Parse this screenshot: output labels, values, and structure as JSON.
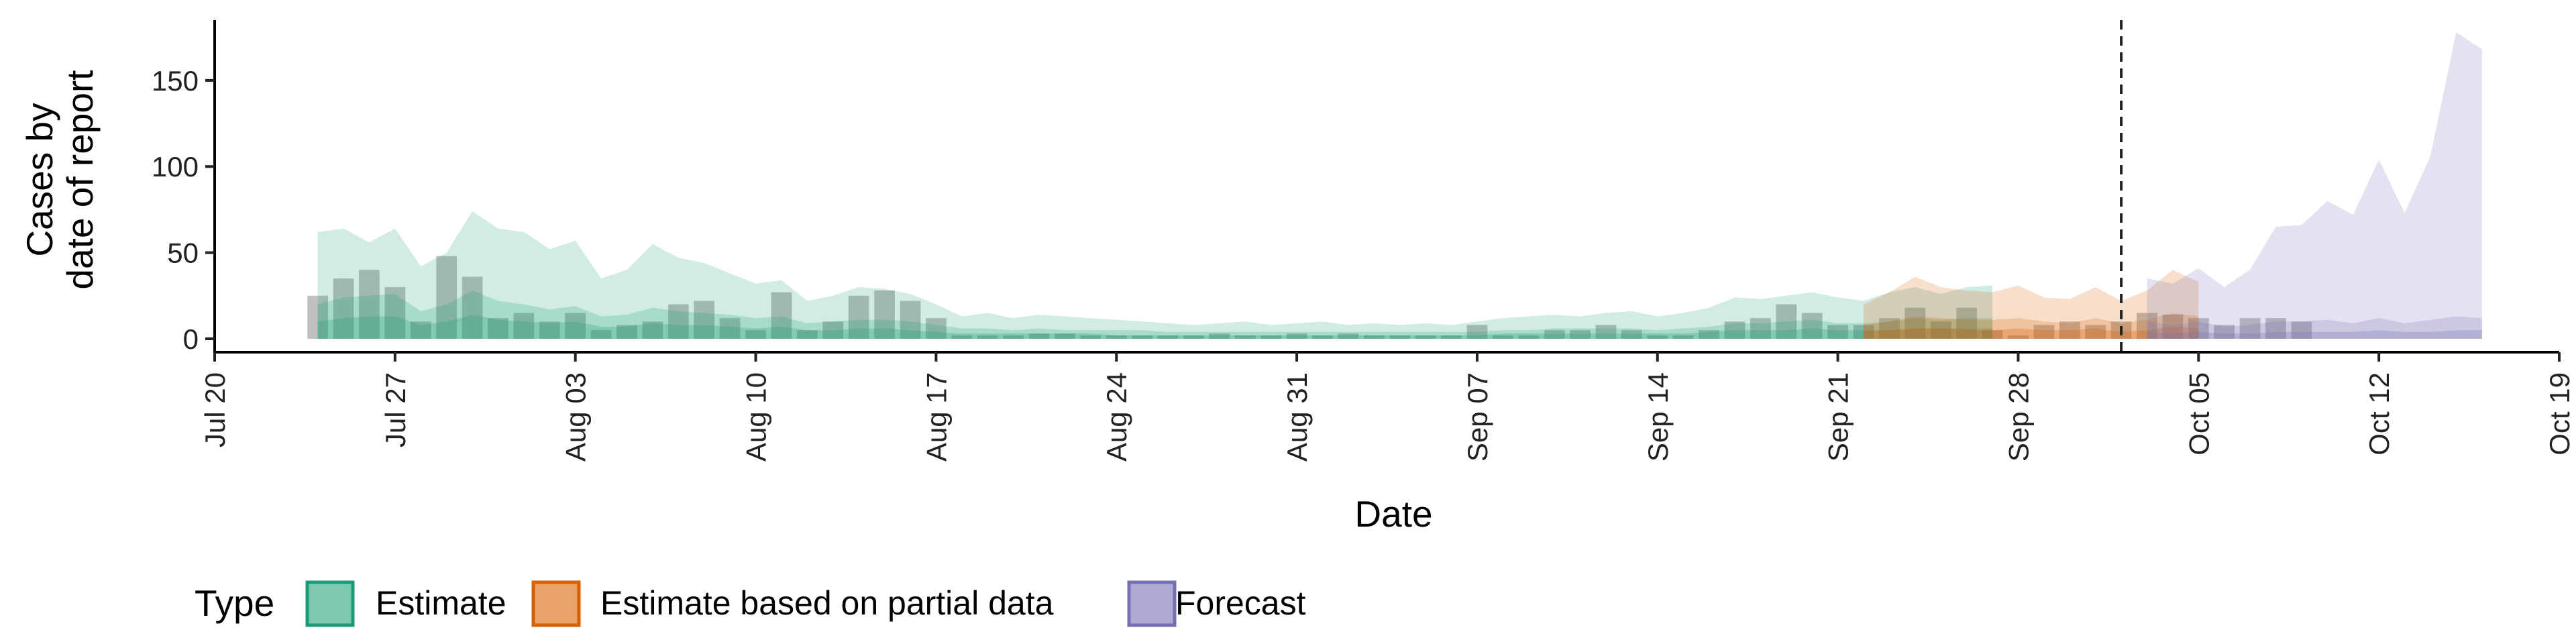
{
  "chart_data": {
    "type": "area",
    "xlabel": "Date",
    "ylabel": [
      "Cases by",
      "date of report"
    ],
    "ylim": [
      0,
      185
    ],
    "yticks": [
      0,
      50,
      100,
      150
    ],
    "xaxis": {
      "start": "2020-07-20",
      "end": "2020-10-19",
      "ticks": [
        {
          "date": "2020-07-20",
          "label": "Jul 20"
        },
        {
          "date": "2020-07-27",
          "label": "Jul 27"
        },
        {
          "date": "2020-08-03",
          "label": "Aug 03"
        },
        {
          "date": "2020-08-10",
          "label": "Aug 10"
        },
        {
          "date": "2020-08-17",
          "label": "Aug 17"
        },
        {
          "date": "2020-08-24",
          "label": "Aug 24"
        },
        {
          "date": "2020-08-31",
          "label": "Aug 31"
        },
        {
          "date": "2020-09-07",
          "label": "Sep 07"
        },
        {
          "date": "2020-09-14",
          "label": "Sep 14"
        },
        {
          "date": "2020-09-21",
          "label": "Sep 21"
        },
        {
          "date": "2020-09-28",
          "label": "Sep 28"
        },
        {
          "date": "2020-10-05",
          "label": "Oct 05"
        },
        {
          "date": "2020-10-12",
          "label": "Oct 12"
        },
        {
          "date": "2020-10-19",
          "label": "Oct 19"
        }
      ]
    },
    "reference_line": "2020-10-02",
    "bars": {
      "start": "2020-07-24",
      "values": [
        25,
        35,
        40,
        30,
        10,
        48,
        36,
        12,
        15,
        10,
        15,
        5,
        8,
        10,
        20,
        22,
        12,
        5,
        27,
        5,
        10,
        25,
        28,
        22,
        12,
        2,
        2,
        2,
        3,
        3,
        2,
        2,
        2,
        2,
        2,
        3,
        2,
        2,
        3,
        2,
        3,
        2,
        2,
        2,
        2,
        8,
        2,
        2,
        5,
        5,
        8,
        5,
        2,
        2,
        5,
        10,
        12,
        20,
        15,
        8,
        8,
        12,
        18,
        10,
        18,
        5,
        2,
        8,
        10,
        8,
        10,
        15,
        14,
        12,
        8,
        12,
        12,
        10
      ]
    },
    "series": [
      {
        "name": "Estimate",
        "color": "#1b9e77",
        "start": "2020-07-24",
        "upper90": [
          62,
          64,
          56,
          64,
          42,
          50,
          74,
          64,
          62,
          52,
          57,
          35,
          40,
          55,
          47,
          44,
          38,
          32,
          34,
          22,
          25,
          30,
          29,
          26,
          20,
          13,
          15,
          12,
          14,
          13,
          12,
          11,
          10,
          9,
          8,
          9,
          10,
          8,
          9,
          10,
          8,
          9,
          8,
          9,
          8,
          10,
          12,
          13,
          14,
          13,
          15,
          16,
          13,
          15,
          18,
          24,
          23,
          25,
          27,
          24,
          22,
          27,
          30,
          26,
          30,
          31
        ],
        "upper50": [
          20,
          24,
          25,
          26,
          16,
          20,
          28,
          22,
          20,
          17,
          19,
          13,
          14,
          18,
          16,
          15,
          14,
          12,
          13,
          9,
          10,
          11,
          11,
          10,
          8,
          6,
          6,
          5,
          6,
          5,
          5,
          5,
          5,
          4,
          4,
          4,
          4,
          4,
          4,
          4,
          4,
          4,
          4,
          4,
          4,
          4,
          5,
          5,
          6,
          6,
          6,
          6,
          5,
          6,
          7,
          9,
          9,
          10,
          11,
          9,
          9,
          10,
          12,
          11,
          12,
          12
        ],
        "upper20": [
          10,
          12,
          13,
          13,
          8,
          10,
          14,
          11,
          10,
          9,
          10,
          7,
          7,
          9,
          8,
          8,
          7,
          6,
          7,
          5,
          5,
          6,
          6,
          5,
          4,
          3,
          3,
          3,
          3,
          3,
          3,
          2,
          2,
          2,
          2,
          2,
          2,
          2,
          2,
          2,
          2,
          2,
          2,
          2,
          2,
          2,
          3,
          3,
          3,
          3,
          3,
          3,
          3,
          3,
          4,
          5,
          5,
          5,
          6,
          5,
          5,
          5,
          6,
          6,
          6,
          6
        ]
      },
      {
        "name": "Estimate based on partial data",
        "color": "#d95f02",
        "start": "2020-09-22",
        "upper90": [
          20,
          27,
          36,
          30,
          28,
          27,
          31,
          24,
          23,
          30,
          22,
          28,
          40,
          33
        ],
        "upper50": [
          8,
          10,
          13,
          12,
          11,
          11,
          12,
          10,
          9,
          12,
          9,
          11,
          15,
          13
        ],
        "upper20": [
          4,
          5,
          6,
          6,
          5,
          5,
          6,
          5,
          5,
          6,
          4,
          5,
          7,
          6
        ]
      },
      {
        "name": "Forecast",
        "color": "#7570b3",
        "start": "2020-10-03",
        "upper90": [
          35,
          32,
          41,
          30,
          40,
          65,
          66,
          80,
          72,
          104,
          73,
          106,
          178,
          168
        ],
        "upper50": [
          10,
          8,
          10,
          7,
          8,
          10,
          10,
          11,
          9,
          12,
          9,
          11,
          13,
          12
        ],
        "upper20": [
          4,
          3,
          4,
          3,
          3,
          4,
          4,
          4,
          4,
          5,
          4,
          4,
          5,
          5
        ]
      }
    ],
    "legend": {
      "title": "Type",
      "position": "bottom",
      "items": [
        {
          "label": "Estimate",
          "fill": "#7ec9ad",
          "stroke": "#1b9e77"
        },
        {
          "label": "Estimate based on partial data",
          "fill": "#e9a36a",
          "stroke": "#d95f02"
        },
        {
          "label": "Forecast",
          "fill": "#aeaad3",
          "stroke": "#7570b3"
        }
      ]
    }
  }
}
